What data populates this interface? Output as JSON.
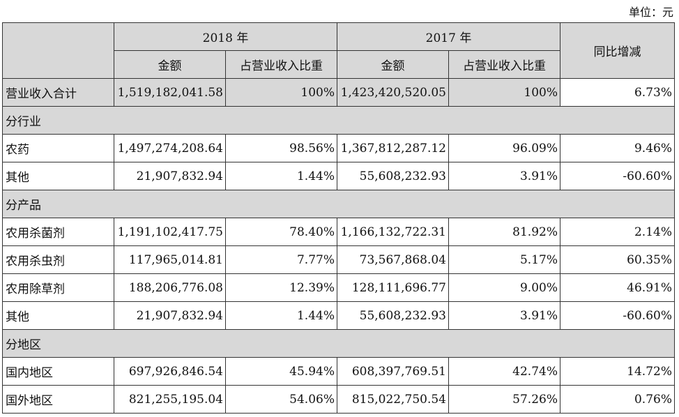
{
  "unit_label": "单位：元",
  "header": {
    "year1": "2018 年",
    "year2": "2017 年",
    "yoy": "同比增减",
    "amount": "金额",
    "ratio": "占营业收入比重"
  },
  "total": {
    "label": "营业收入合计",
    "amt2018": "1,519,182,041.58",
    "pct2018": "100%",
    "amt2017": "1,423,420,520.05",
    "pct2017": "100%",
    "yoy": "6.73%"
  },
  "sections": [
    {
      "title": "分行业",
      "rows": [
        {
          "label": "农药",
          "amt2018": "1,497,274,208.64",
          "pct2018": "98.56%",
          "amt2017": "1,367,812,287.12",
          "pct2017": "96.09%",
          "yoy": "9.46%"
        },
        {
          "label": "其他",
          "amt2018": "21,907,832.94",
          "pct2018": "1.44%",
          "amt2017": "55,608,232.93",
          "pct2017": "3.91%",
          "yoy": "-60.60%"
        }
      ]
    },
    {
      "title": "分产品",
      "rows": [
        {
          "label": "农用杀菌剂",
          "amt2018": "1,191,102,417.75",
          "pct2018": "78.40%",
          "amt2017": "1,166,132,722.31",
          "pct2017": "81.92%",
          "yoy": "2.14%"
        },
        {
          "label": "农用杀虫剂",
          "amt2018": "117,965,014.81",
          "pct2018": "7.77%",
          "amt2017": "73,567,868.04",
          "pct2017": "5.17%",
          "yoy": "60.35%"
        },
        {
          "label": "农用除草剂",
          "amt2018": "188,206,776.08",
          "pct2018": "12.39%",
          "amt2017": "128,111,696.77",
          "pct2017": "9.00%",
          "yoy": "46.91%"
        },
        {
          "label": "其他",
          "amt2018": "21,907,832.94",
          "pct2018": "1.44%",
          "amt2017": "55,608,232.93",
          "pct2017": "3.91%",
          "yoy": "-60.60%"
        }
      ]
    },
    {
      "title": "分地区",
      "rows": [
        {
          "label": "国内地区",
          "amt2018": "697,926,846.54",
          "pct2018": "45.94%",
          "amt2017": "608,397,769.51",
          "pct2017": "42.74%",
          "yoy": "14.72%"
        },
        {
          "label": "国外地区",
          "amt2018": "821,255,195.04",
          "pct2018": "54.06%",
          "amt2017": "815,022,750.54",
          "pct2017": "57.26%",
          "yoy": "0.76%"
        }
      ]
    }
  ]
}
